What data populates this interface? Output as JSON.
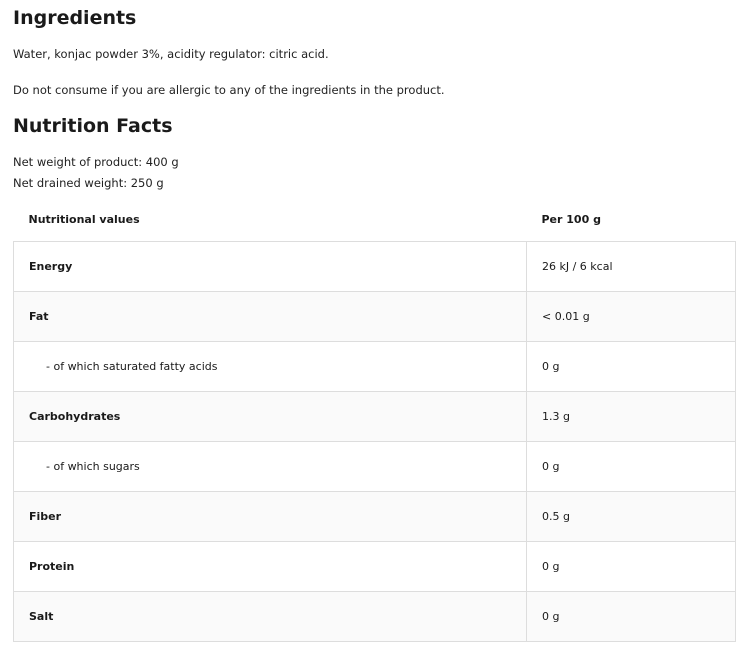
{
  "ingredients": {
    "title": "Ingredients",
    "text": "Water, konjac powder 3%, acidity regulator: citric acid.",
    "warning": "Do not consume if you are allergic to any of the ingredients in the product."
  },
  "nutrition": {
    "title": "Nutrition Facts",
    "net_weight": "Net weight of product: 400 g",
    "drained_weight": "Net drained weight: 250 g",
    "headers": [
      "Nutritional values",
      "Per 100 g"
    ],
    "rows": [
      {
        "label": "Energy",
        "value": "26 kJ / 6 kcal",
        "sub": false
      },
      {
        "label": "Fat",
        "value": "< 0.01 g",
        "sub": false
      },
      {
        "label": "- of which saturated fatty acids",
        "value": "0 g",
        "sub": true
      },
      {
        "label": "Carbohydrates",
        "value": "1.3 g",
        "sub": false
      },
      {
        "label": "- of which sugars",
        "value": "0 g",
        "sub": true
      },
      {
        "label": "Fiber",
        "value": "0.5 g",
        "sub": false
      },
      {
        "label": "Protein",
        "value": "0 g",
        "sub": false
      },
      {
        "label": "Salt",
        "value": "0 g",
        "sub": false
      }
    ]
  }
}
